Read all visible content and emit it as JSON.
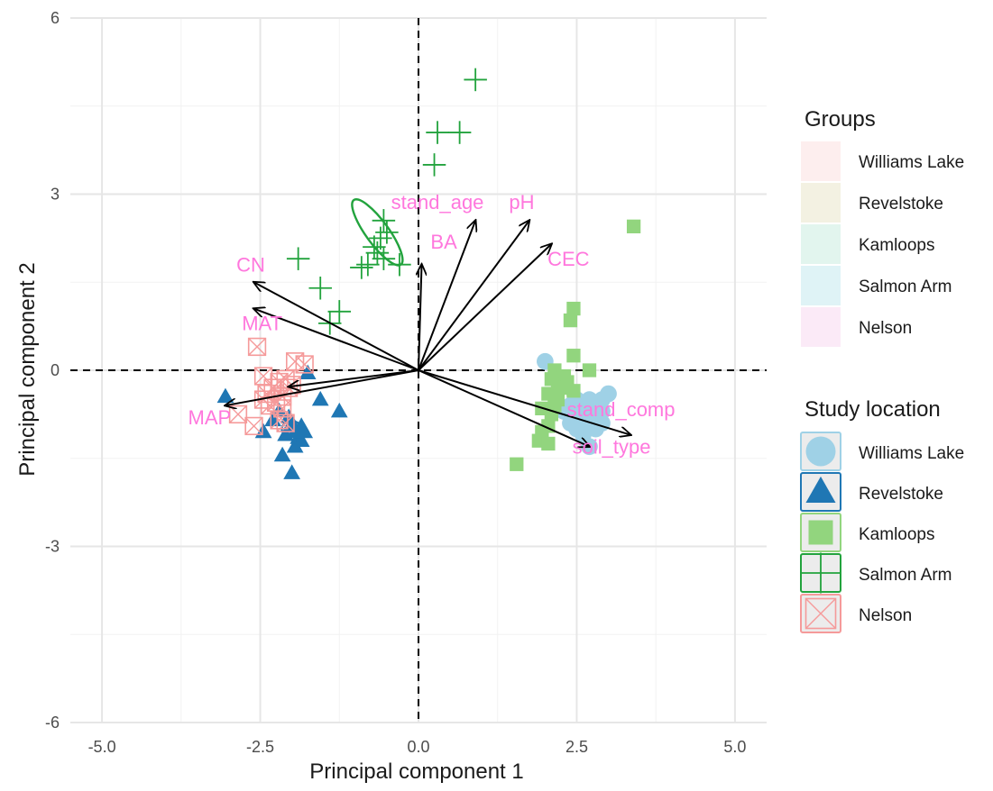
{
  "chart_data": {
    "type": "scatter",
    "title": "",
    "xlabel": "Principal component 1",
    "ylabel": "Principal component 2",
    "xlim": [
      -5.5,
      5.5
    ],
    "ylim": [
      -6,
      6
    ],
    "x_ticks": [
      "-5.0",
      "-2.5",
      "0.0",
      "2.5",
      "5.0"
    ],
    "x_tick_values": [
      -5,
      -2.5,
      0,
      2.5,
      5
    ],
    "y_ticks": [
      "-6",
      "-3",
      "0",
      "3",
      "6"
    ],
    "y_tick_values": [
      -6,
      -3,
      0,
      3,
      6
    ],
    "grid": true,
    "reference_lines": {
      "x": 0,
      "y": 0,
      "style": "dashed"
    },
    "legend_position": "right",
    "legend_groups_title": "Groups",
    "legend_groups": [
      {
        "label": "Williams Lake",
        "color": "#fdeeee"
      },
      {
        "label": "Revelstoke",
        "color": "#f3f1e2"
      },
      {
        "label": " Kamloops",
        "color": "#e2f5ee"
      },
      {
        "label": "Salmon Arm",
        "color": "#dff3f6"
      },
      {
        "label": "Nelson",
        "color": "#fbeaf7"
      }
    ],
    "legend_location_title": "Study location",
    "series": [
      {
        "name": "Williams Lake",
        "marker": "circle",
        "color": "#9fd1e6",
        "points": [
          [
            2.4,
            -0.6
          ],
          [
            2.5,
            -0.7
          ],
          [
            2.6,
            -0.8
          ],
          [
            2.7,
            -0.9
          ],
          [
            2.8,
            -0.6
          ],
          [
            2.9,
            -0.5
          ],
          [
            3.0,
            -0.4
          ],
          [
            2.6,
            -1.1
          ],
          [
            2.7,
            -1.3
          ],
          [
            2.5,
            -0.5
          ],
          [
            2.8,
            -0.8
          ],
          [
            2.9,
            -0.7
          ],
          [
            2.6,
            -0.6
          ],
          [
            2.7,
            -0.5
          ],
          [
            2.4,
            -0.9
          ],
          [
            2.5,
            -1.0
          ],
          [
            2.8,
            -1.0
          ],
          [
            2.3,
            -0.7
          ],
          [
            2.9,
            -0.9
          ],
          [
            2.0,
            0.15
          ],
          [
            2.55,
            -0.75
          ],
          [
            2.75,
            -0.65
          ]
        ]
      },
      {
        "name": "Revelstoke",
        "marker": "triangle",
        "color": "#1f77b4",
        "points": [
          [
            -3.05,
            -0.45
          ],
          [
            -2.45,
            -1.05
          ],
          [
            -2.3,
            -0.85
          ],
          [
            -2.15,
            -1.45
          ],
          [
            -2.05,
            -0.8
          ],
          [
            -2.1,
            -1.1
          ],
          [
            -2.0,
            -1.75
          ],
          [
            -1.95,
            -1.3
          ],
          [
            -1.9,
            -1.15
          ],
          [
            -1.85,
            -0.95
          ],
          [
            -2.0,
            -0.9
          ],
          [
            -1.85,
            -1.2
          ],
          [
            -1.55,
            -0.5
          ],
          [
            -1.25,
            -0.7
          ],
          [
            -1.75,
            -0.05
          ],
          [
            -2.0,
            -0.95
          ],
          [
            -1.95,
            -1.05
          ],
          [
            -2.2,
            -0.7
          ],
          [
            -1.8,
            -1.05
          ]
        ]
      },
      {
        "name": "Kamloops",
        "marker": "square",
        "color": "#92d57e",
        "points": [
          [
            3.4,
            2.45
          ],
          [
            2.45,
            1.05
          ],
          [
            2.4,
            0.85
          ],
          [
            2.45,
            0.25
          ],
          [
            2.15,
            0.0
          ],
          [
            2.3,
            -0.1
          ],
          [
            2.2,
            -0.25
          ],
          [
            2.05,
            -0.4
          ],
          [
            2.2,
            -0.5
          ],
          [
            2.45,
            -0.35
          ],
          [
            1.95,
            -0.65
          ],
          [
            2.1,
            -0.75
          ],
          [
            2.05,
            -0.95
          ],
          [
            1.95,
            -1.05
          ],
          [
            1.9,
            -1.2
          ],
          [
            2.05,
            -1.25
          ],
          [
            1.55,
            -1.6
          ],
          [
            2.7,
            0.0
          ],
          [
            2.35,
            -0.2
          ],
          [
            2.2,
            -0.45
          ],
          [
            2.25,
            -0.3
          ],
          [
            2.1,
            -0.15
          ],
          [
            2.15,
            -0.6
          ]
        ]
      },
      {
        "name": "Salmon Arm",
        "marker": "plus",
        "color": "#22a33d",
        "points": [
          [
            0.9,
            4.95
          ],
          [
            0.3,
            4.05
          ],
          [
            0.65,
            4.05
          ],
          [
            0.25,
            3.5
          ],
          [
            -0.55,
            2.55
          ],
          [
            -0.6,
            2.25
          ],
          [
            -0.7,
            2.1
          ],
          [
            -0.8,
            1.8
          ],
          [
            -0.9,
            1.75
          ],
          [
            -0.55,
            1.9
          ],
          [
            -0.3,
            1.8
          ],
          [
            -1.9,
            1.9
          ],
          [
            -1.55,
            1.4
          ],
          [
            -1.25,
            1.0
          ],
          [
            -1.4,
            0.8
          ],
          [
            -0.5,
            2.35
          ],
          [
            -0.65,
            2.0
          ]
        ]
      },
      {
        "name": "Nelson",
        "marker": "boxed-x",
        "color": "#f59a9a",
        "points": [
          [
            -2.55,
            0.4
          ],
          [
            -2.45,
            -0.1
          ],
          [
            -2.4,
            -0.4
          ],
          [
            -2.3,
            -0.3
          ],
          [
            -2.2,
            -0.2
          ],
          [
            -2.15,
            -0.45
          ],
          [
            -2.1,
            -0.15
          ],
          [
            -2.05,
            -0.3
          ],
          [
            -2.0,
            -0.25
          ],
          [
            -1.95,
            0.15
          ],
          [
            -1.8,
            0.1
          ],
          [
            -2.25,
            -0.55
          ],
          [
            -2.2,
            -0.85
          ],
          [
            -2.1,
            -0.9
          ],
          [
            -2.35,
            -0.6
          ],
          [
            -2.45,
            -0.5
          ],
          [
            -2.85,
            -0.75
          ],
          [
            -2.6,
            -0.95
          ],
          [
            -2.15,
            -0.65
          ]
        ]
      }
    ],
    "ellipses": [
      {
        "group": "Williams Lake",
        "cx": 2.68,
        "cy": -0.72,
        "rx": 0.09,
        "ry": 0.09,
        "angle": 0
      },
      {
        "group": "Revelstoke",
        "cx": -2.0,
        "cy": -1.0,
        "rx": 0.16,
        "ry": 0.13,
        "angle": 0
      },
      {
        "group": "Kamloops",
        "cx": 2.25,
        "cy": -0.3,
        "rx": 0.08,
        "ry": 0.38,
        "angle": 15
      },
      {
        "group": "Salmon Arm",
        "cx": -0.65,
        "cy": 2.35,
        "rx": 0.18,
        "ry": 0.68,
        "angle": 36
      },
      {
        "group": "Nelson",
        "cx": -2.27,
        "cy": -0.43,
        "rx": 0.1,
        "ry": 0.09,
        "angle": 0
      }
    ],
    "loadings": [
      {
        "label": "stand_age",
        "x": 0.9,
        "y": 2.55,
        "label_x": 0.3,
        "label_y": 2.75
      },
      {
        "label": "pH",
        "x": 1.75,
        "y": 2.55,
        "label_x": 1.63,
        "label_y": 2.75
      },
      {
        "label": "BA",
        "x": 0.05,
        "y": 1.8,
        "label_x": 0.4,
        "label_y": 2.07
      },
      {
        "label": "CEC",
        "x": 2.1,
        "y": 2.15,
        "label_x": 2.37,
        "label_y": 1.78
      },
      {
        "label": "CN",
        "x": -2.6,
        "y": 1.5,
        "label_x": -2.65,
        "label_y": 1.68
      },
      {
        "label": "MAT",
        "x": -2.6,
        "y": 1.05,
        "label_x": -2.47,
        "label_y": 0.68
      },
      {
        "label": "",
        "x": -2.05,
        "y": -0.28,
        "label_x": 0,
        "label_y": 0
      },
      {
        "label": "MAP",
        "x": -3.05,
        "y": -0.6,
        "label_x": -3.3,
        "label_y": -0.92
      },
      {
        "label": "stand_comp",
        "x": 3.35,
        "y": -1.1,
        "label_x": 3.2,
        "label_y": -0.78
      },
      {
        "label": "soil_type",
        "x": 2.7,
        "y": -1.3,
        "label_x": 3.05,
        "label_y": -1.42
      }
    ]
  }
}
